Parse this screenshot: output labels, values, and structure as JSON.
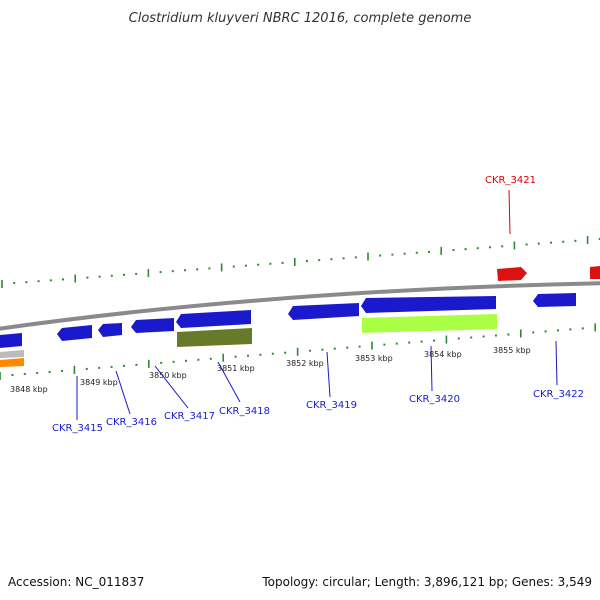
{
  "title": "Clostridium kluyveri NBRC 12016, complete genome",
  "footer": {
    "accession": "Accession: NC_011837",
    "summary": "Topology: circular; Length: 3,896,121 bp; Genes: 3,549"
  },
  "colors": {
    "background": "#ffffff",
    "backbone": "#8a8a8a",
    "tick": "#2e8b2e",
    "cds": "#1a1acc",
    "highlight_label": "#dd0000",
    "label": "#1a1acc",
    "rrna": "#dd1111",
    "green_dark": "#667a2a",
    "green_light": "#aaff44",
    "orange": "#ff8800",
    "gray": "#bbbbbb"
  },
  "kbp_labels": [
    "3848 kbp",
    "3849 kbp",
    "3850 kbp",
    "3851 kbp",
    "3852 kbp",
    "3853 kbp",
    "3854 kbp",
    "3855 kbp"
  ],
  "genes": [
    {
      "label": "CKR_3415",
      "color": "label"
    },
    {
      "label": "CKR_3416",
      "color": "label"
    },
    {
      "label": "CKR_3417",
      "color": "label"
    },
    {
      "label": "CKR_3418",
      "color": "label"
    },
    {
      "label": "CKR_3419",
      "color": "label"
    },
    {
      "label": "CKR_3420",
      "color": "label"
    },
    {
      "label": "CKR_3421",
      "color": "highlight_label"
    },
    {
      "label": "CKR_3422",
      "color": "label"
    }
  ]
}
